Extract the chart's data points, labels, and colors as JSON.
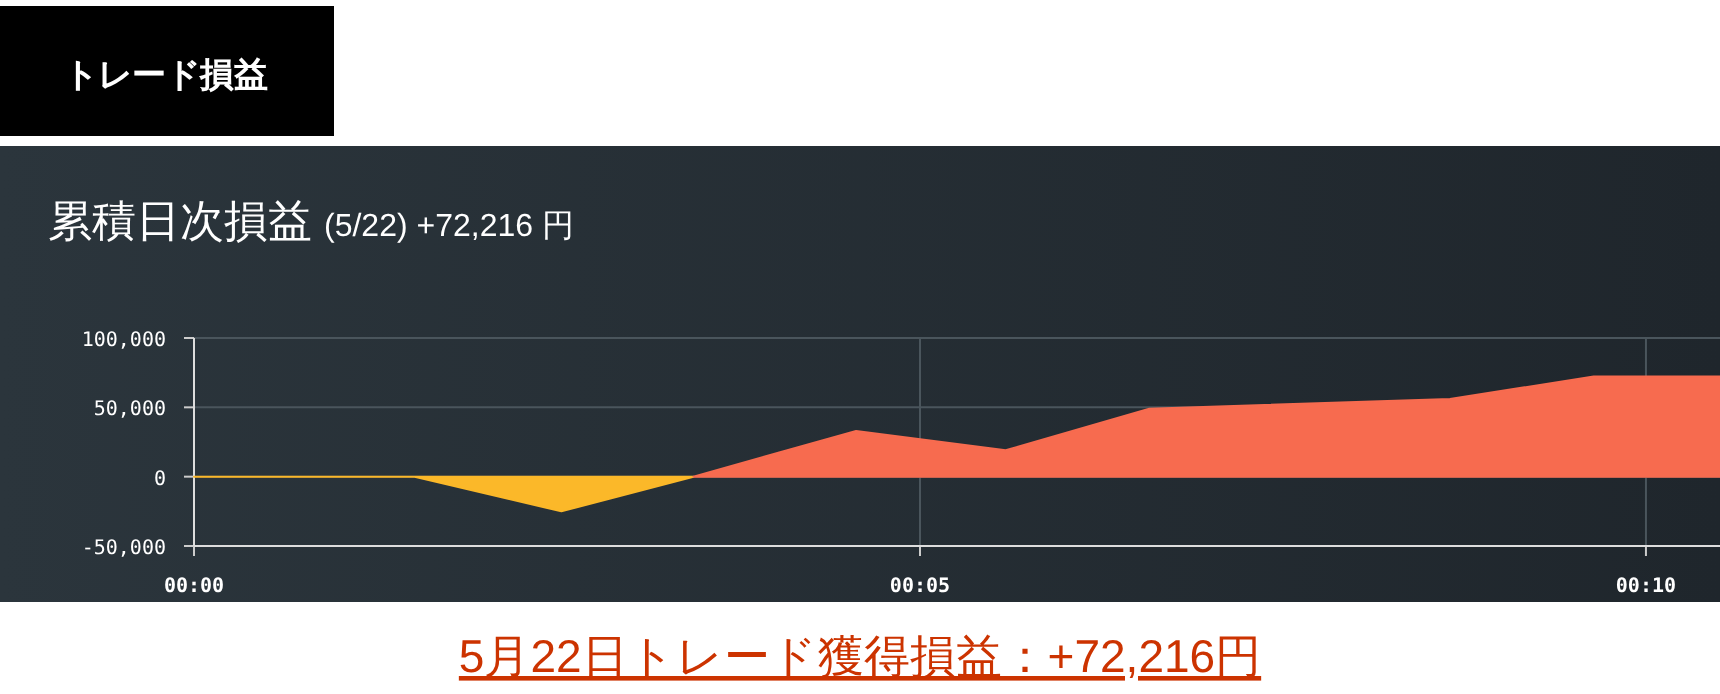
{
  "chart_data": {
    "type": "area",
    "title": "トレード損益",
    "subtitle": "累積日次損益",
    "annotations": [
      "(5/22) +72,216 円",
      "5月22日トレード獲得損益：+72,216円"
    ],
    "series": [
      {
        "color": "#fbb829",
        "x": [
          0,
          1.52,
          2.53,
          3.44
        ],
        "values": [
          0,
          0,
          -25000,
          0
        ]
      },
      {
        "color": "#f76b4f",
        "x": [
          3.44,
          4.56,
          5.59,
          6.58,
          8.65,
          9.64,
          10.51
        ],
        "values": [
          0,
          33000,
          19000,
          49000,
          56000,
          72216,
          72216
        ]
      }
    ],
    "xlim": [
      0,
      10.51
    ],
    "xticks": [
      {
        "value": 0,
        "label": "00:00"
      },
      {
        "value": 5,
        "label": "00:05"
      },
      {
        "value": 10,
        "label": "00:10"
      }
    ],
    "ylim": [
      -50000,
      100000
    ],
    "yticks": [
      {
        "value": -50000,
        "label": "-50,000"
      },
      {
        "value": 0,
        "label": "0"
      },
      {
        "value": 50000,
        "label": "50,000"
      },
      {
        "value": 100000,
        "label": "100,000"
      }
    ],
    "grid": true
  }
}
